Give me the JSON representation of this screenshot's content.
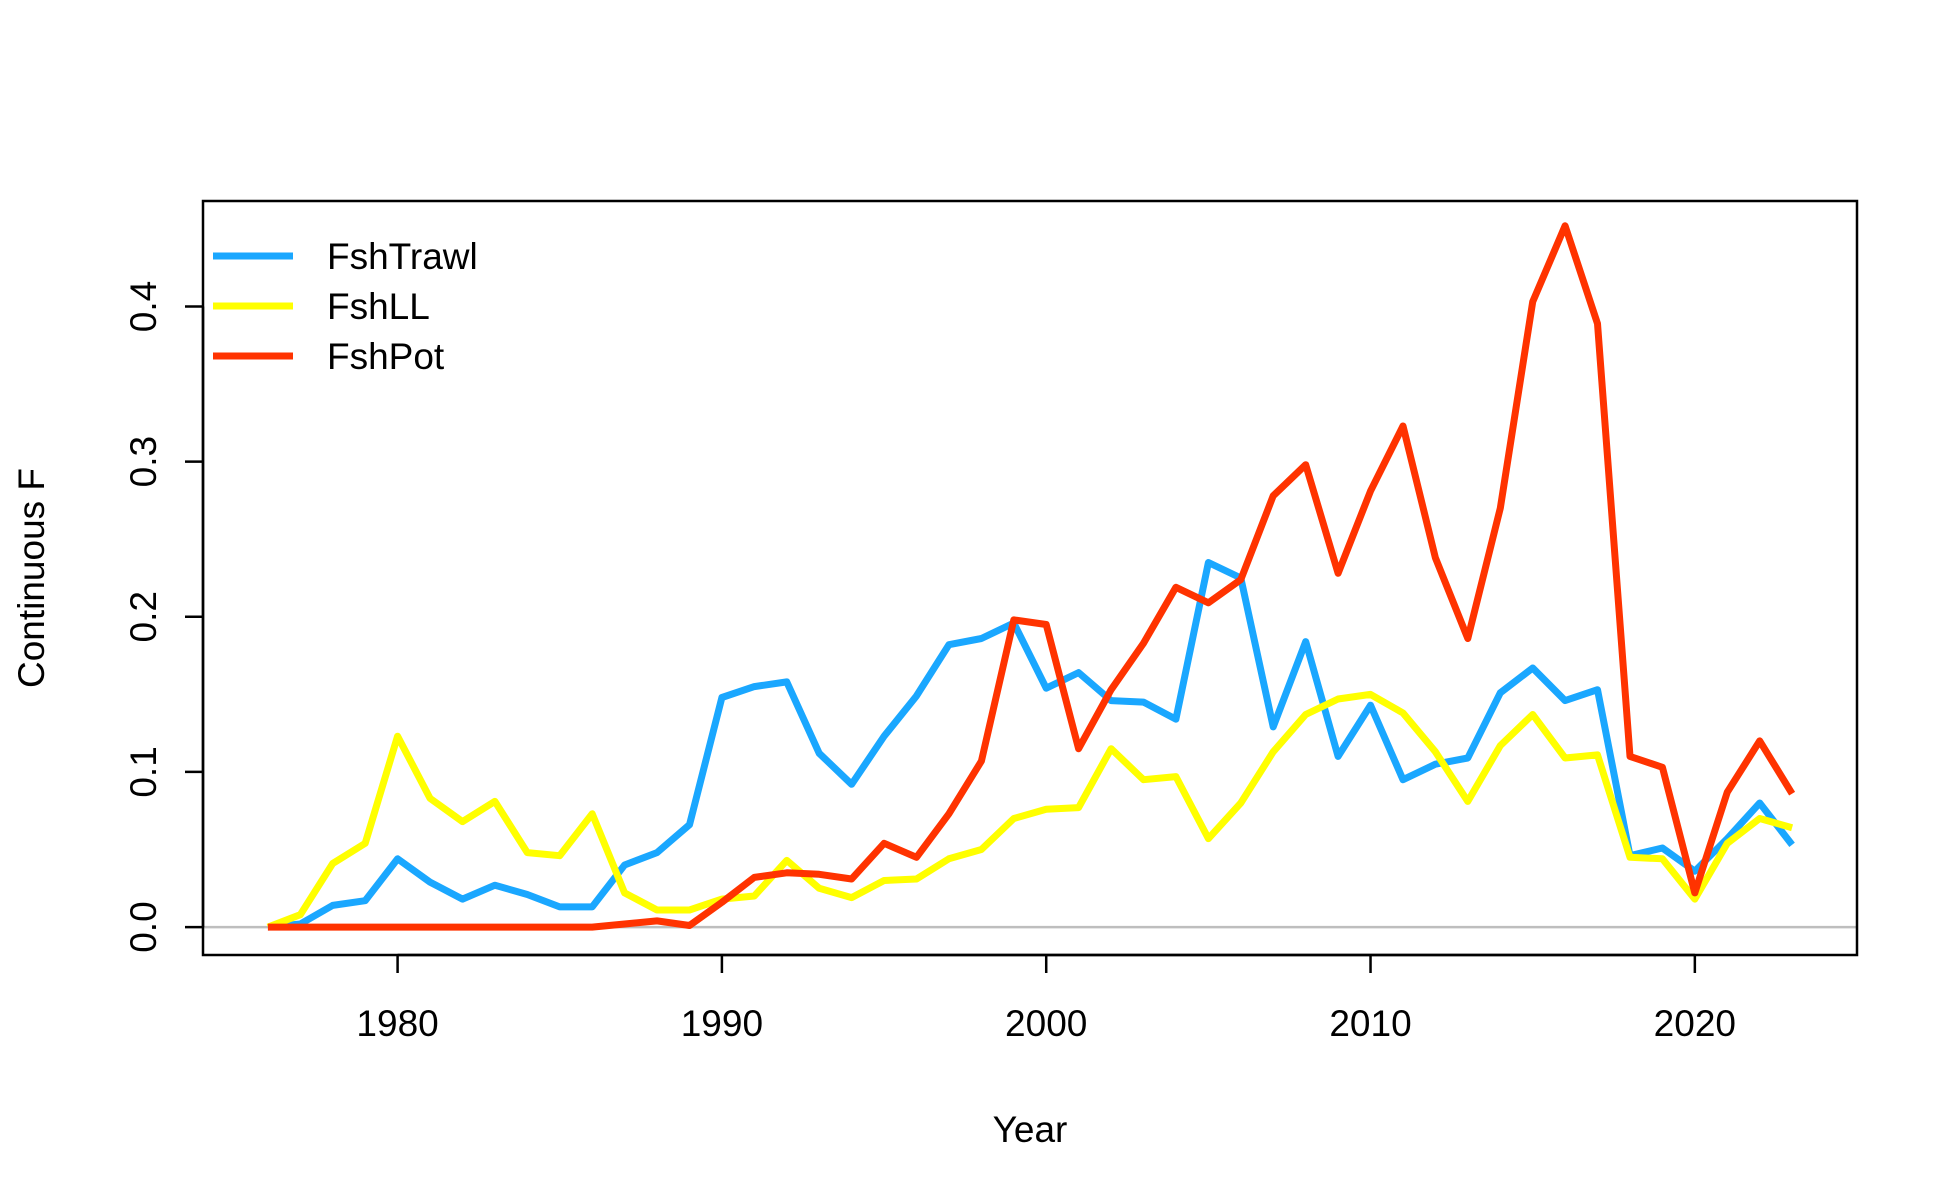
{
  "chart_data": {
    "type": "line",
    "title": "",
    "xlabel": "Year",
    "ylabel": "Continuous F",
    "xlim": [
      1974,
      2025
    ],
    "ylim": [
      -0.018,
      0.468
    ],
    "x_ticks": [
      1980,
      1990,
      2000,
      2010,
      2020
    ],
    "x_tick_labels": [
      "1980",
      "1990",
      "2000",
      "2010",
      "2020"
    ],
    "y_ticks": [
      0.0,
      0.1,
      0.2,
      0.3,
      0.4
    ],
    "y_tick_labels": [
      "0.0",
      "0.1",
      "0.2",
      "0.3",
      "0.4"
    ],
    "reference_line": {
      "y": 0,
      "color": "#bebebe"
    },
    "grid": false,
    "legend_position": "top-left",
    "x": [
      1976,
      1977,
      1978,
      1979,
      1980,
      1981,
      1982,
      1983,
      1984,
      1985,
      1986,
      1987,
      1988,
      1989,
      1990,
      1991,
      1992,
      1993,
      1994,
      1995,
      1996,
      1997,
      1998,
      1999,
      2000,
      2001,
      2002,
      2003,
      2004,
      2005,
      2006,
      2007,
      2008,
      2009,
      2010,
      2011,
      2012,
      2013,
      2014,
      2015,
      2016,
      2017,
      2018,
      2019,
      2020,
      2021,
      2022,
      2023
    ],
    "series": [
      {
        "name": "FshTrawl",
        "color": "#1aa7ff",
        "values": [
          0.0,
          0.002,
          0.014,
          0.017,
          0.044,
          0.029,
          0.018,
          0.027,
          0.021,
          0.013,
          0.013,
          0.04,
          0.048,
          0.066,
          0.148,
          0.155,
          0.158,
          0.112,
          0.092,
          0.123,
          0.149,
          0.182,
          0.186,
          0.196,
          0.154,
          0.164,
          0.146,
          0.145,
          0.134,
          0.235,
          0.225,
          0.129,
          0.184,
          0.11,
          0.143,
          0.095,
          0.105,
          0.109,
          0.151,
          0.167,
          0.146,
          0.153,
          0.046,
          0.051,
          0.036,
          0.057,
          0.08,
          0.053
        ]
      },
      {
        "name": "FshLL",
        "color": "#ffff00",
        "values": [
          0.0,
          0.008,
          0.041,
          0.054,
          0.123,
          0.083,
          0.068,
          0.081,
          0.048,
          0.046,
          0.073,
          0.022,
          0.011,
          0.011,
          0.018,
          0.02,
          0.043,
          0.025,
          0.019,
          0.03,
          0.031,
          0.044,
          0.05,
          0.07,
          0.076,
          0.077,
          0.115,
          0.095,
          0.097,
          0.057,
          0.08,
          0.113,
          0.137,
          0.147,
          0.15,
          0.138,
          0.113,
          0.081,
          0.117,
          0.137,
          0.109,
          0.111,
          0.045,
          0.044,
          0.018,
          0.054,
          0.07,
          0.064
        ]
      },
      {
        "name": "FshPot",
        "color": "#ff3300",
        "values": [
          0.0,
          0.0,
          0.0,
          0.0,
          0.0,
          0.0,
          0.0,
          0.0,
          0.0,
          0.0,
          0.0,
          0.002,
          0.004,
          0.001,
          0.016,
          0.032,
          0.035,
          0.034,
          0.031,
          0.054,
          0.045,
          0.073,
          0.107,
          0.198,
          0.195,
          0.115,
          0.153,
          0.183,
          0.219,
          0.209,
          0.224,
          0.278,
          0.298,
          0.228,
          0.281,
          0.323,
          0.238,
          0.186,
          0.27,
          0.403,
          0.452,
          0.389,
          0.11,
          0.103,
          0.022,
          0.087,
          0.12,
          0.086
        ]
      }
    ]
  }
}
